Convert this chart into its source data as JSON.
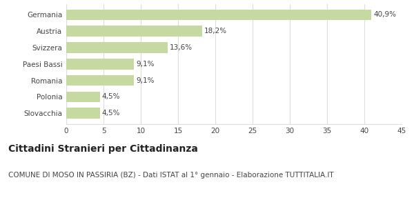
{
  "categories": [
    "Slovacchia",
    "Polonia",
    "Romania",
    "Paesi Bassi",
    "Svizzera",
    "Austria",
    "Germania"
  ],
  "values": [
    4.5,
    4.5,
    9.1,
    9.1,
    13.6,
    18.2,
    40.9
  ],
  "labels": [
    "4,5%",
    "4,5%",
    "9,1%",
    "9,1%",
    "13,6%",
    "18,2%",
    "40,9%"
  ],
  "bar_color": "#c5d9a0",
  "background_color": "#ffffff",
  "title": "Cittadini Stranieri per Cittadinanza",
  "subtitle": "COMUNE DI MOSO IN PASSIRIA (BZ) - Dati ISTAT al 1° gennaio - Elaborazione TUTTITALIA.IT",
  "xlim": [
    0,
    45
  ],
  "xticks": [
    0,
    5,
    10,
    15,
    20,
    25,
    30,
    35,
    40,
    45
  ],
  "title_fontsize": 10,
  "subtitle_fontsize": 7.5,
  "label_fontsize": 7.5,
  "tick_fontsize": 7.5,
  "grid_color": "#dddddd"
}
